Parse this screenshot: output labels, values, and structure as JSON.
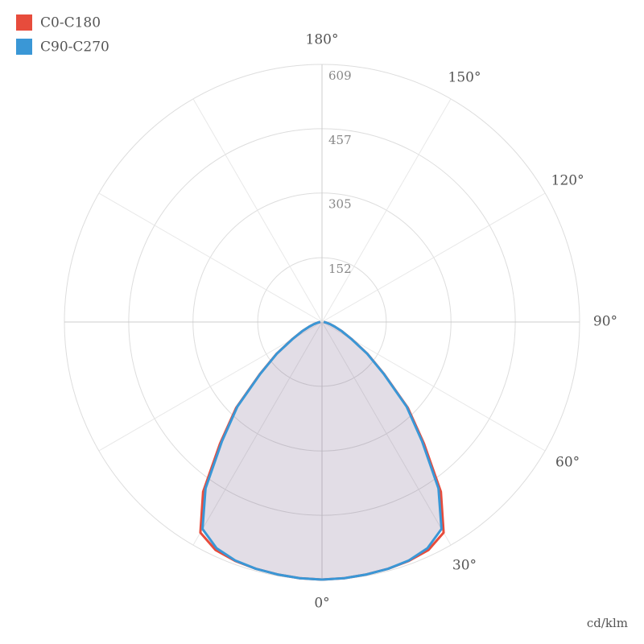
{
  "chart_data": {
    "type": "polar",
    "unit_label": "cd/klm",
    "angles": [
      0,
      5,
      10,
      15,
      20,
      25,
      30,
      35,
      40,
      45,
      50,
      55,
      60,
      65,
      70,
      75,
      80,
      85,
      90
    ],
    "series": [
      {
        "name": "C0-C180",
        "color": "#e74c3c",
        "values": [
          609,
          608,
          606,
          604,
          601,
          595,
          575,
          490,
          375,
          287,
          192,
          131,
          81,
          52,
          32,
          20,
          12,
          7,
          4
        ]
      },
      {
        "name": "C90-C270",
        "color": "#3a97d6",
        "values": [
          609,
          608,
          606,
          604,
          600,
          590,
          565,
          480,
          368,
          283,
          190,
          130,
          80,
          52,
          32,
          20,
          12,
          7,
          4
        ]
      }
    ],
    "rlim": [
      0,
      609
    ],
    "rticks": [
      152,
      305,
      457,
      609
    ],
    "angle_ticks": [
      {
        "value": 0,
        "label": "0°"
      },
      {
        "value": 30,
        "label": "30°"
      },
      {
        "value": 60,
        "label": "60°"
      },
      {
        "value": 90,
        "label": "90°"
      },
      {
        "value": 120,
        "label": "120°"
      },
      {
        "value": 150,
        "label": "150°"
      },
      {
        "value": 180,
        "label": "180°"
      }
    ],
    "fill_color": "rgba(110,85,130,0.2)",
    "grid": true
  }
}
